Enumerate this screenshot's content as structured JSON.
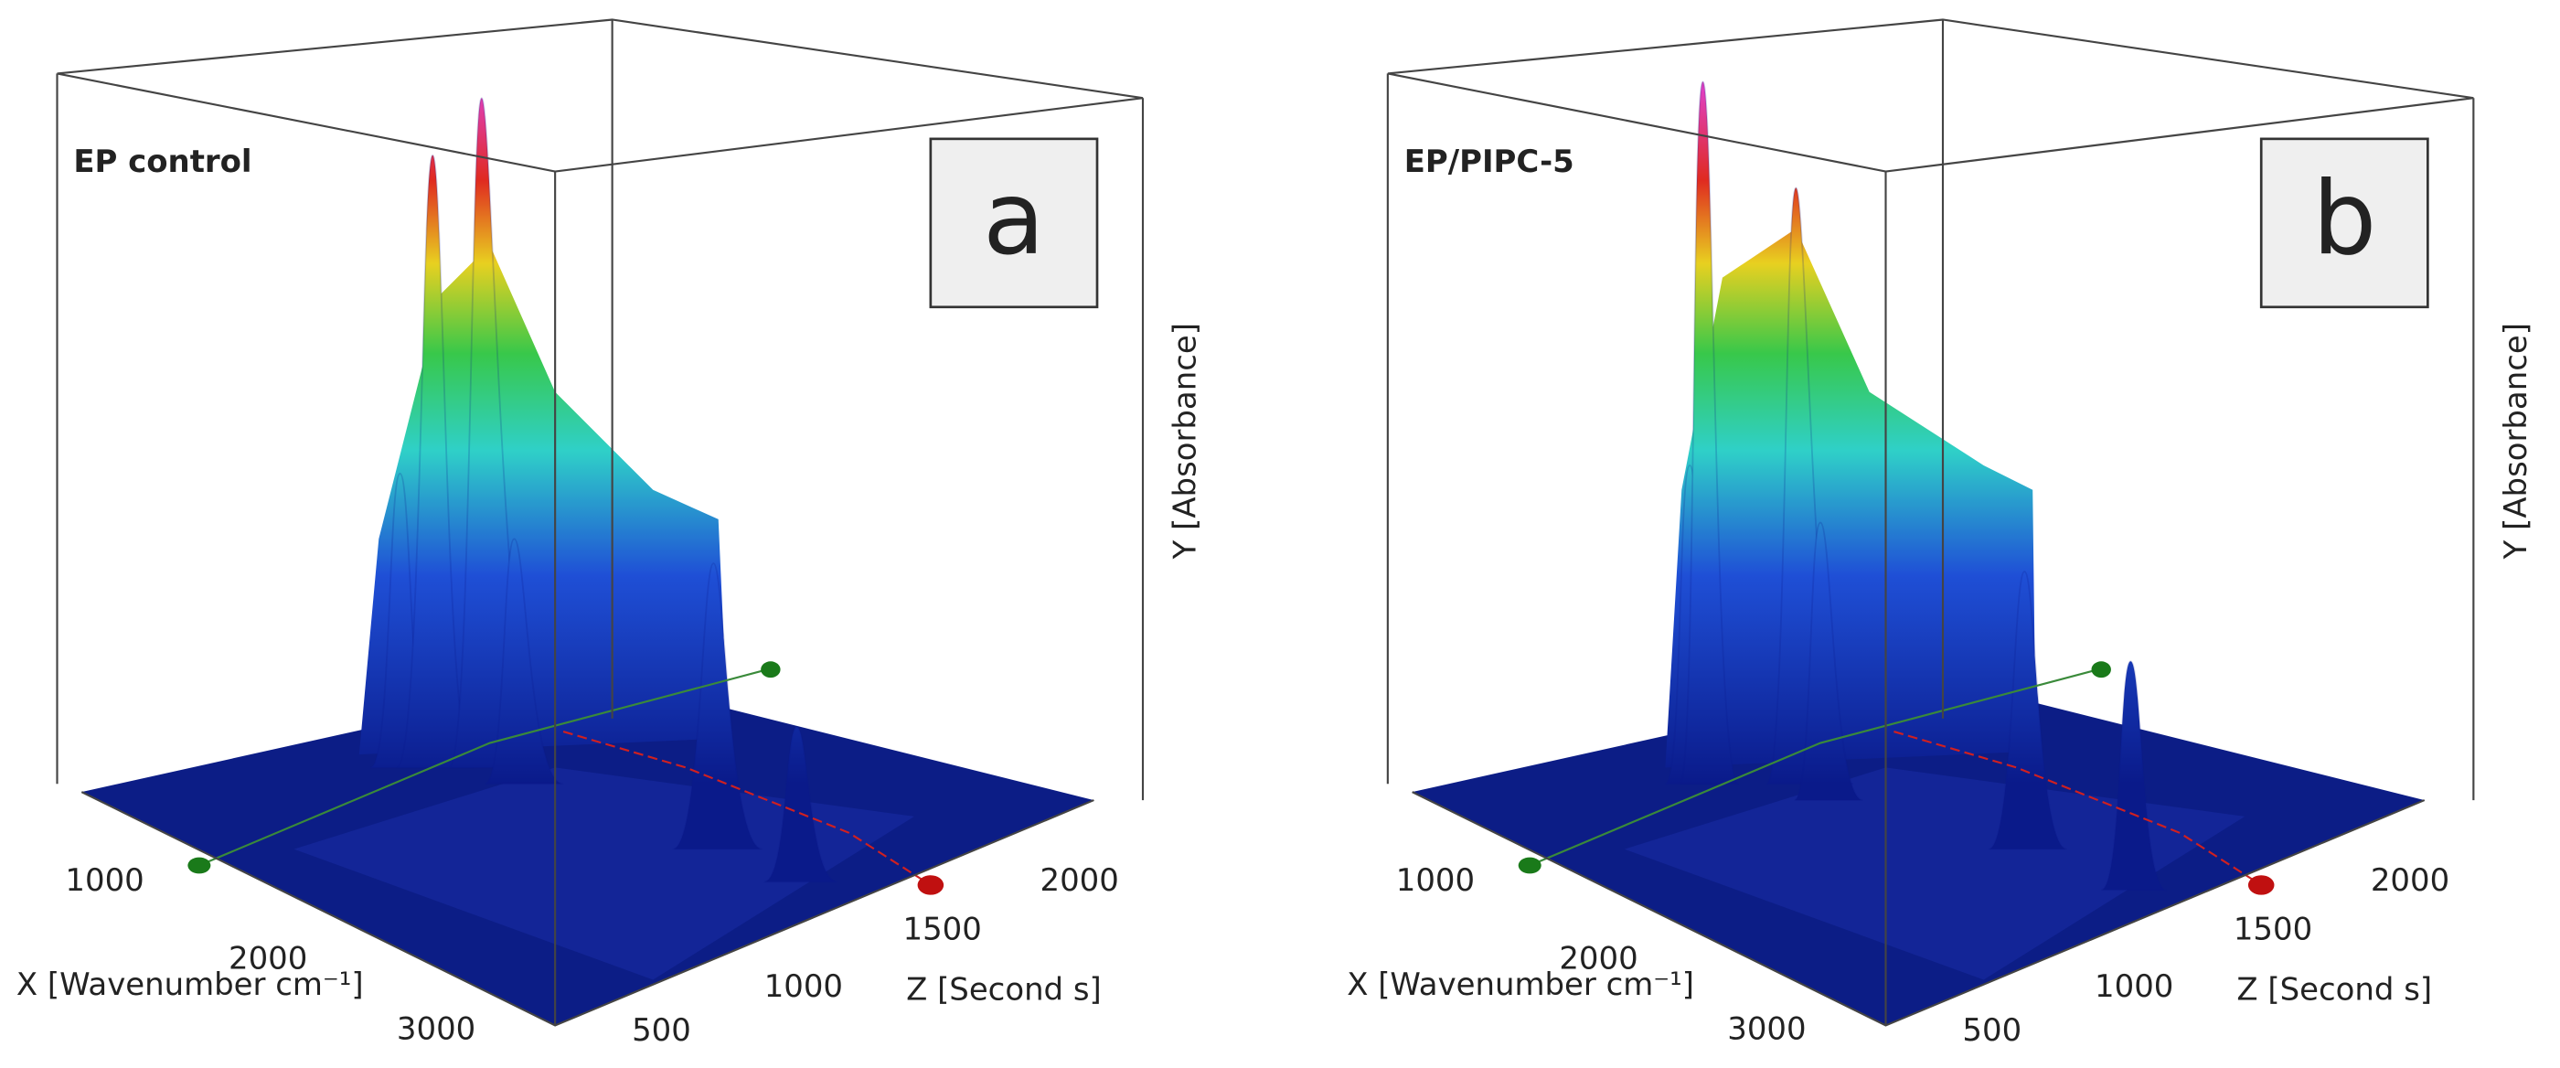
{
  "panels": [
    {
      "title": "EP control",
      "letter": "a",
      "x_axis": {
        "label": "X [Wavenumber cm⁻¹]",
        "ticks": [
          1000,
          2000,
          3000
        ]
      },
      "y_axis": {
        "label": "Y [Absorbance]"
      },
      "z_axis": {
        "label": "Z [Second s]",
        "ticks": [
          500,
          1000,
          1500,
          2000
        ]
      }
    },
    {
      "title": "EP/PIPC-5",
      "letter": "b",
      "x_axis": {
        "label": "X [Wavenumber cm⁻¹]",
        "ticks": [
          1000,
          2000,
          3000
        ]
      },
      "y_axis": {
        "label": "Y [Absorbance]"
      },
      "z_axis": {
        "label": "Z [Second s]",
        "ticks": [
          500,
          1000,
          1500,
          2000
        ]
      }
    }
  ]
}
